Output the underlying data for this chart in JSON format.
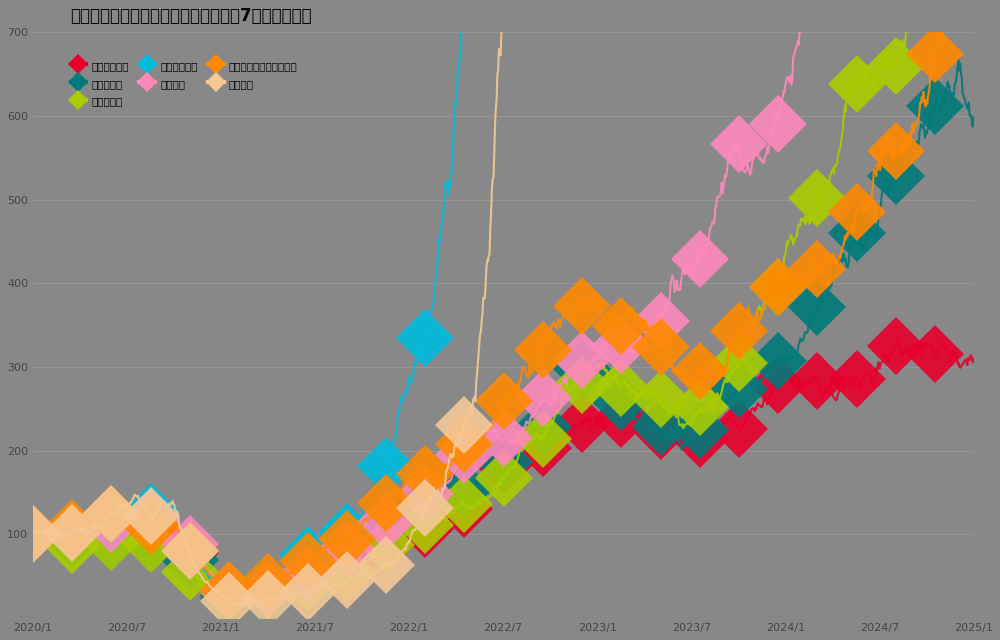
{
  "title": "トヨタグループ上場企業時価総額上位7社の株価推移",
  "companies": [
    "トヨタ自動車",
    "トヨタ決済",
    "トヨタ車体",
    "ジェイテクト",
    "デンソー",
    "トヨタインダストリーズ",
    "愛知製鋼"
  ],
  "colors": [
    "#e8002d",
    "#007a7a",
    "#aacc00",
    "#00bbdd",
    "#ff88bb",
    "#ff8800",
    "#f5c896"
  ],
  "background_color": "#888888",
  "plot_background": "#888888",
  "ylim": [
    0,
    700
  ],
  "yticks": [
    100,
    200,
    300,
    400,
    500,
    600,
    700
  ],
  "num_points": 1200,
  "markersize": 30,
  "markevery": 50
}
